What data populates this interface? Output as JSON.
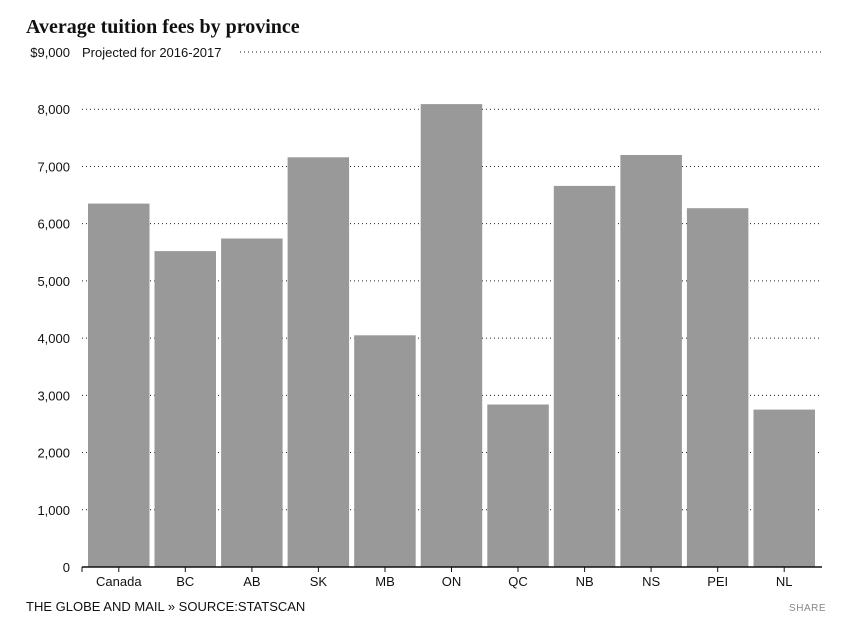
{
  "chart_data": {
    "type": "bar",
    "title": "Average tuition fees by province",
    "note": "Projected for 2016-2017",
    "categories": [
      "Canada",
      "BC",
      "AB",
      "SK",
      "MB",
      "ON",
      "QC",
      "NB",
      "NS",
      "PEI",
      "NL"
    ],
    "values": [
      6350,
      5520,
      5740,
      7160,
      4050,
      8090,
      2840,
      6660,
      7200,
      6270,
      2750
    ],
    "ylim": [
      0,
      9000
    ],
    "yticks": [
      0,
      1000,
      2000,
      3000,
      4000,
      5000,
      6000,
      7000,
      8000,
      9000
    ],
    "ytick_labels": [
      "0",
      "1,000",
      "2,000",
      "3,000",
      "4,000",
      "5,000",
      "6,000",
      "7,000",
      "8,000",
      "$9,000"
    ],
    "xlabel": "",
    "ylabel": "",
    "grid": true,
    "bar_color": "#999999"
  },
  "footer": {
    "credit": "THE GLOBE AND MAIL » SOURCE:STATSCAN",
    "share_label": "SHARE"
  }
}
